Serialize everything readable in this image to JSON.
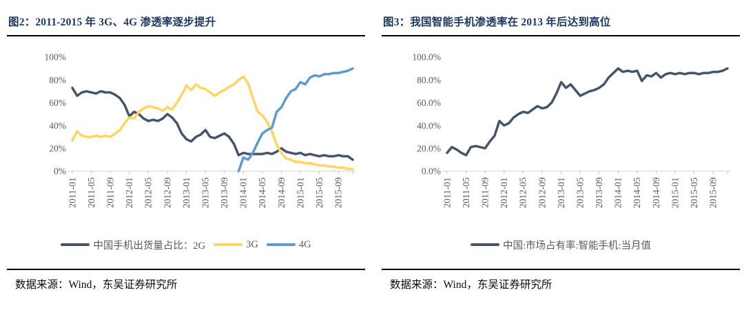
{
  "colors": {
    "navy": "#44546A",
    "yellow": "#FFD45F",
    "blue": "#5B9BD5",
    "title_blue": "#1F3864",
    "axis_text": "#595959",
    "axis_line": "#D9D9D9",
    "rule": "#000000"
  },
  "figures": [
    {
      "title": "图2：2011-2015 年 3G、4G 渗透率逐步提升",
      "source": "数据来源：Wind，东吴证券研究所"
    },
    {
      "title": "图3：我国智能手机渗透率在 2013 年后达到高位",
      "source": "数据来源：Wind，东吴证券研究所"
    }
  ],
  "chart_data": [
    {
      "type": "line",
      "title": "图2：2011-2015 年 3G、4G 渗透率逐步提升",
      "xlabel": "",
      "ylabel": "",
      "ylim": [
        0,
        100
      ],
      "grid": false,
      "legend_position": "bottom",
      "yticks": [
        "0%",
        "20%",
        "40%",
        "60%",
        "80%",
        "100%"
      ],
      "x_tick_labels": [
        "2011-01",
        "2011-05",
        "2011-09",
        "2012-01",
        "2012-05",
        "2012-09",
        "2013-01",
        "2013-05",
        "2013-09",
        "2014-01",
        "2014-05",
        "2014-09",
        "2015-01",
        "2015-05",
        "2015-09"
      ],
      "x": [
        "2011-01",
        "2011-02",
        "2011-03",
        "2011-04",
        "2011-05",
        "2011-06",
        "2011-07",
        "2011-08",
        "2011-09",
        "2011-10",
        "2011-11",
        "2011-12",
        "2012-01",
        "2012-02",
        "2012-03",
        "2012-04",
        "2012-05",
        "2012-06",
        "2012-07",
        "2012-08",
        "2012-09",
        "2012-10",
        "2012-11",
        "2012-12",
        "2013-01",
        "2013-02",
        "2013-03",
        "2013-04",
        "2013-05",
        "2013-06",
        "2013-07",
        "2013-08",
        "2013-09",
        "2013-10",
        "2013-11",
        "2013-12",
        "2014-01",
        "2014-02",
        "2014-03",
        "2014-04",
        "2014-05",
        "2014-06",
        "2014-07",
        "2014-08",
        "2014-09",
        "2014-10",
        "2014-11",
        "2014-12",
        "2015-01",
        "2015-02",
        "2015-03",
        "2015-04",
        "2015-05",
        "2015-06",
        "2015-07",
        "2015-08",
        "2015-09",
        "2015-10",
        "2015-11",
        "2015-12"
      ],
      "series": [
        {
          "name": "中国手机出货量占比：2G",
          "color": "#44546A",
          "values": [
            73,
            66,
            69,
            70,
            69,
            68,
            70,
            69,
            69,
            67,
            64,
            58,
            48,
            52,
            50,
            46,
            44,
            45,
            44,
            46,
            50,
            47,
            42,
            33,
            28,
            26,
            30,
            32,
            36,
            30,
            29,
            31,
            33,
            30,
            24,
            14,
            16,
            15,
            15,
            15,
            15,
            16,
            15,
            17,
            20,
            17,
            16,
            15,
            16,
            14,
            15,
            14,
            13,
            14,
            13,
            13,
            14,
            13,
            13,
            10
          ]
        },
        {
          "name": "3G",
          "color": "#FFD45F",
          "values": [
            27,
            35,
            31,
            30,
            30,
            31,
            30,
            31,
            30,
            33,
            36,
            42,
            47,
            46,
            52,
            55,
            57,
            56,
            55,
            53,
            56,
            54,
            60,
            67,
            75,
            71,
            76,
            73,
            72,
            69,
            66,
            69,
            71,
            74,
            76,
            80,
            83,
            77,
            64,
            52,
            49,
            43,
            35,
            23,
            16,
            11,
            10,
            8,
            8,
            7,
            7,
            6,
            5,
            5,
            4,
            4,
            3,
            3,
            2,
            2
          ]
        },
        {
          "name": "4G",
          "color": "#5B9BD5",
          "values": [
            null,
            null,
            null,
            null,
            null,
            null,
            null,
            null,
            null,
            null,
            null,
            null,
            null,
            null,
            null,
            null,
            null,
            null,
            null,
            null,
            null,
            null,
            null,
            null,
            null,
            null,
            null,
            null,
            null,
            null,
            null,
            null,
            null,
            null,
            null,
            0,
            12,
            10,
            16,
            25,
            33,
            36,
            38,
            52,
            56,
            64,
            70,
            72,
            78,
            76,
            82,
            84,
            83,
            85,
            85,
            86,
            86,
            87,
            88,
            90
          ]
        }
      ]
    },
    {
      "type": "line",
      "title": "图3：我国智能手机渗透率在 2013 年后达到高位",
      "xlabel": "",
      "ylabel": "",
      "ylim": [
        0,
        100
      ],
      "grid": false,
      "legend_position": "bottom",
      "yticks": [
        "0.0%",
        "20.0%",
        "40.0%",
        "60.0%",
        "80.0%",
        "100.0%"
      ],
      "x_tick_labels": [
        "2011-01",
        "2011-05",
        "2011-09",
        "2012-01",
        "2012-05",
        "2012-09",
        "2013-01",
        "2013-05",
        "2013-09",
        "2014-01",
        "2014-05",
        "2014-09",
        "2015-01",
        "2015-05",
        "2015-09"
      ],
      "x": [
        "2011-01",
        "2011-02",
        "2011-03",
        "2011-04",
        "2011-05",
        "2011-06",
        "2011-07",
        "2011-08",
        "2011-09",
        "2011-10",
        "2011-11",
        "2011-12",
        "2012-01",
        "2012-02",
        "2012-03",
        "2012-04",
        "2012-05",
        "2012-06",
        "2012-07",
        "2012-08",
        "2012-09",
        "2012-10",
        "2012-11",
        "2012-12",
        "2013-01",
        "2013-02",
        "2013-03",
        "2013-04",
        "2013-05",
        "2013-06",
        "2013-07",
        "2013-08",
        "2013-09",
        "2013-10",
        "2013-11",
        "2013-12",
        "2014-01",
        "2014-02",
        "2014-03",
        "2014-04",
        "2014-05",
        "2014-06",
        "2014-07",
        "2014-08",
        "2014-09",
        "2014-10",
        "2014-11",
        "2014-12",
        "2015-01",
        "2015-02",
        "2015-03",
        "2015-04",
        "2015-05",
        "2015-06",
        "2015-07",
        "2015-08",
        "2015-09",
        "2015-10",
        "2015-11",
        "2015-12"
      ],
      "series": [
        {
          "name": "中国:市场占有率:智能手机:当月值",
          "color": "#44546A",
          "values": [
            16,
            21,
            19,
            16,
            14,
            21,
            22,
            21,
            20,
            26,
            31,
            44,
            40,
            42,
            47,
            50,
            52,
            51,
            54,
            57,
            55,
            56,
            60,
            68,
            78,
            73,
            76,
            71,
            66,
            68,
            70,
            71,
            73,
            76,
            82,
            86,
            90,
            87,
            88,
            87,
            88,
            79,
            84,
            83,
            86,
            82,
            85,
            86,
            85,
            86,
            85,
            86,
            86,
            85,
            86,
            86,
            87,
            87,
            88,
            90
          ]
        }
      ]
    }
  ]
}
